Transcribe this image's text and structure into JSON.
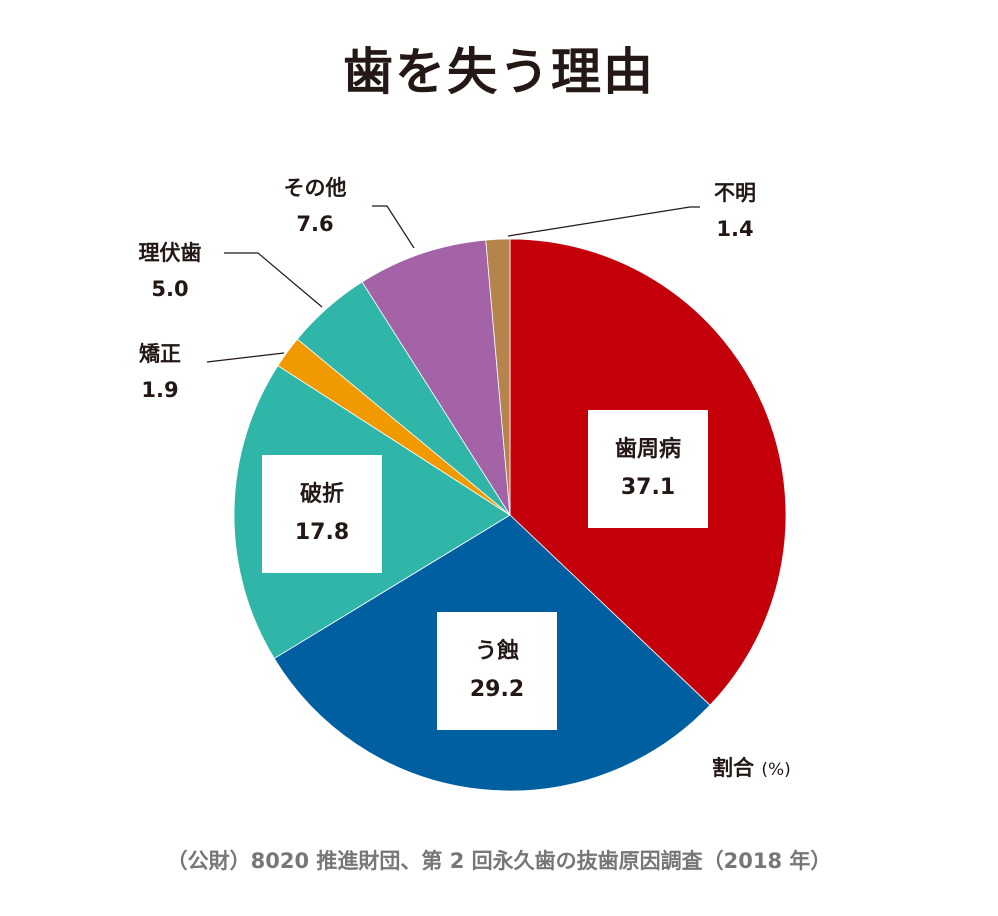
{
  "chart_data": {
    "type": "pie",
    "title": "歯を失う理由",
    "unit_label": "割合",
    "unit": "(%)",
    "start": "top",
    "direction": "clockwise",
    "slices": [
      {
        "label": "歯周病",
        "value": 37.1,
        "value_text": "37.1",
        "color": "#c4000b"
      },
      {
        "label": "う蝕",
        "value": 29.2,
        "value_text": "29.2",
        "color": "#005fa0"
      },
      {
        "label": "破折",
        "value": 17.8,
        "value_text": "17.8",
        "color": "#2fb6a9"
      },
      {
        "label": "矯正",
        "value": 1.9,
        "value_text": "1.9",
        "color": "#f09a00"
      },
      {
        "label": "理伏歯",
        "value": 5.0,
        "value_text": "5.0",
        "color": "#2fb6a9"
      },
      {
        "label": "その他",
        "value": 7.6,
        "value_text": "7.6",
        "color": "#a463a7"
      },
      {
        "label": "不明",
        "value": 1.4,
        "value_text": "1.4",
        "color": "#b4844c"
      }
    ],
    "source": "（公財）8020 推進財団、第 2 回永久歯の抜歯原因調査（2018 年）"
  }
}
